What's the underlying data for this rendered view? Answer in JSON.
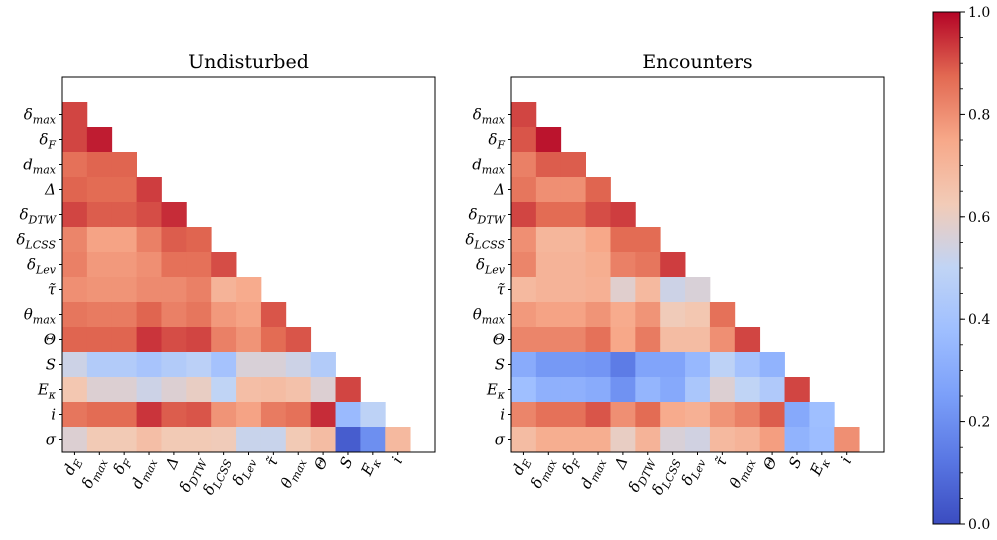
{
  "chart_data": [
    {
      "type": "heatmap",
      "title": "Undisturbed",
      "variables": [
        "d_E",
        "δ_max",
        "δ_F",
        "d_max",
        "Δ",
        "δ_DTW",
        "δ_LCSS",
        "δ_Lev",
        "τ̃",
        "θ_max",
        "Θ",
        "S",
        "E_κ",
        "i",
        "σ"
      ],
      "row_labels": [
        "δ_max",
        "δ_F",
        "d_max",
        "Δ",
        "δ_DTW",
        "δ_LCSS",
        "δ_Lev",
        "τ̃",
        "θ_max",
        "Θ",
        "S",
        "E_κ",
        "i",
        "σ"
      ],
      "col_labels": [
        "d_E",
        "δ_max",
        "δ_F",
        "d_max",
        "Δ",
        "δ_DTW",
        "δ_LCSS",
        "δ_Lev",
        "τ̃",
        "θ_max",
        "Θ",
        "S",
        "E_κ",
        "i"
      ],
      "matrix": [
        [
          0.92
        ],
        [
          0.92,
          0.97
        ],
        [
          0.86,
          0.88,
          0.88
        ],
        [
          0.88,
          0.87,
          0.87,
          0.93
        ],
        [
          0.92,
          0.89,
          0.89,
          0.91,
          0.95
        ],
        [
          0.82,
          0.76,
          0.76,
          0.83,
          0.89,
          0.88
        ],
        [
          0.83,
          0.78,
          0.78,
          0.8,
          0.86,
          0.86,
          0.91
        ],
        [
          0.8,
          0.79,
          0.79,
          0.81,
          0.81,
          0.83,
          0.71,
          0.74
        ],
        [
          0.85,
          0.84,
          0.84,
          0.88,
          0.83,
          0.85,
          0.78,
          0.76,
          0.9
        ],
        [
          0.88,
          0.88,
          0.88,
          0.94,
          0.91,
          0.92,
          0.83,
          0.79,
          0.87,
          0.9
        ],
        [
          0.53,
          0.45,
          0.45,
          0.41,
          0.45,
          0.48,
          0.4,
          0.56,
          0.56,
          0.53,
          0.45
        ],
        [
          0.64,
          0.57,
          0.57,
          0.53,
          0.57,
          0.6,
          0.5,
          0.67,
          0.68,
          0.66,
          0.57,
          0.92
        ],
        [
          0.85,
          0.87,
          0.87,
          0.94,
          0.89,
          0.9,
          0.79,
          0.76,
          0.84,
          0.86,
          0.95,
          0.36,
          0.49
        ],
        [
          0.57,
          0.63,
          0.63,
          0.67,
          0.63,
          0.63,
          0.62,
          0.52,
          0.52,
          0.63,
          0.68,
          0.05,
          0.2,
          0.69
        ]
      ],
      "colorbar": {
        "min": 0.0,
        "max": 1.0
      }
    },
    {
      "type": "heatmap",
      "title": "Encounters",
      "variables": [
        "d_E",
        "δ_max",
        "δ_F",
        "d_max",
        "Δ",
        "δ_DTW",
        "δ_LCSS",
        "δ_Lev",
        "τ̃",
        "θ_max",
        "Θ",
        "S",
        "E_κ",
        "i",
        "σ"
      ],
      "row_labels": [
        "δ_max",
        "δ_F",
        "d_max",
        "Δ",
        "δ_DTW",
        "δ_LCSS",
        "δ_Lev",
        "τ̃",
        "θ_max",
        "Θ",
        "S",
        "E_κ",
        "i",
        "σ"
      ],
      "col_labels": [
        "d_E",
        "δ_max",
        "δ_F",
        "d_max",
        "Δ",
        "δ_DTW",
        "δ_LCSS",
        "δ_Lev",
        "τ̃",
        "θ_max",
        "Θ",
        "S",
        "E_κ",
        "i"
      ],
      "matrix": [
        [
          0.92
        ],
        [
          0.9,
          0.98
        ],
        [
          0.83,
          0.89,
          0.89
        ],
        [
          0.85,
          0.8,
          0.8,
          0.88
        ],
        [
          0.92,
          0.87,
          0.87,
          0.91,
          0.93
        ],
        [
          0.8,
          0.7,
          0.7,
          0.75,
          0.87,
          0.87
        ],
        [
          0.82,
          0.71,
          0.71,
          0.73,
          0.83,
          0.85,
          0.93
        ],
        [
          0.69,
          0.71,
          0.71,
          0.72,
          0.58,
          0.69,
          0.53,
          0.56
        ],
        [
          0.78,
          0.76,
          0.76,
          0.79,
          0.74,
          0.79,
          0.62,
          0.64,
          0.86
        ],
        [
          0.82,
          0.82,
          0.82,
          0.86,
          0.75,
          0.84,
          0.68,
          0.68,
          0.8,
          0.92
        ],
        [
          0.3,
          0.23,
          0.23,
          0.22,
          0.14,
          0.27,
          0.27,
          0.35,
          0.49,
          0.4,
          0.33
        ],
        [
          0.38,
          0.32,
          0.32,
          0.3,
          0.21,
          0.34,
          0.29,
          0.42,
          0.57,
          0.5,
          0.44,
          0.92
        ],
        [
          0.82,
          0.86,
          0.86,
          0.9,
          0.8,
          0.87,
          0.74,
          0.72,
          0.79,
          0.83,
          0.89,
          0.29,
          0.38
        ],
        [
          0.68,
          0.73,
          0.73,
          0.73,
          0.6,
          0.71,
          0.56,
          0.54,
          0.69,
          0.71,
          0.77,
          0.33,
          0.37,
          0.8
        ]
      ],
      "colorbar": {
        "min": 0.0,
        "max": 1.0
      }
    }
  ],
  "colorbar_ticks": [
    "0.0",
    "0.2",
    "0.4",
    "0.6",
    "0.8",
    "1.0"
  ]
}
